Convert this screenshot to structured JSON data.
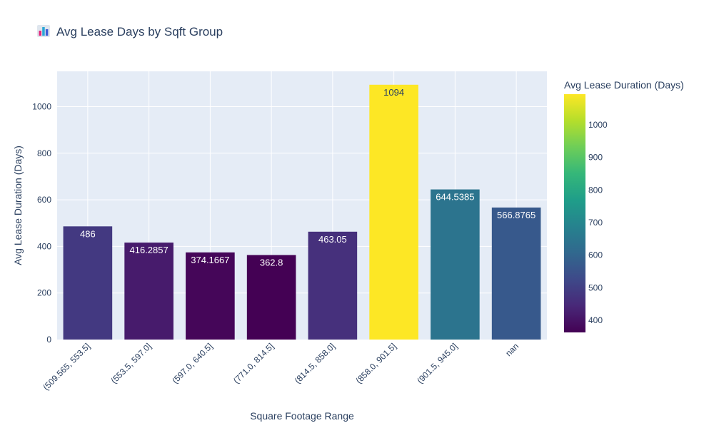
{
  "chart_data": {
    "type": "bar",
    "title": "Avg Lease Days by Sqft Group",
    "title_icon": "bar-chart-emoji-icon",
    "xlabel": "Square Footage Range",
    "ylabel": "Avg Lease Duration (Days)",
    "categories": [
      "(509.565, 553.5]",
      "(553.5, 597.0]",
      "(597.0, 640.5]",
      "(771.0, 814.5]",
      "(814.5, 858.0]",
      "(858.0, 901.5]",
      "(901.5, 945.0]",
      "nan"
    ],
    "values": [
      486,
      416.2857,
      374.1667,
      362.8,
      463.05,
      1094,
      644.5385,
      566.8765
    ],
    "value_labels": [
      "486",
      "416.2857",
      "374.1667",
      "362.8",
      "463.05",
      "1094",
      "644.5385",
      "566.8765"
    ],
    "ylim": [
      0,
      1151.58
    ],
    "yticks": [
      0,
      200,
      400,
      600,
      800,
      1000
    ],
    "grid": true,
    "colorbar": {
      "title": "Avg Lease Duration (Days)",
      "colorscale": "Viridis",
      "cmin": 362.8,
      "cmax": 1094,
      "ticks": [
        400,
        500,
        600,
        700,
        800,
        900,
        1000
      ]
    },
    "colors": {
      "plot_bg": "#e5ecf6",
      "grid": "#ffffff",
      "text": "#2a3f5f"
    }
  }
}
